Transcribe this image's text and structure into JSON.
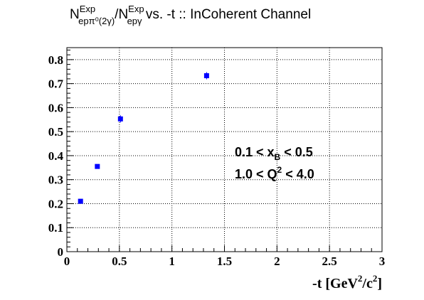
{
  "chart_data": {
    "type": "scatter",
    "title": {
      "lead": "N",
      "num_sup": "Exp",
      "num_sub": "epπ⁰(2γ)",
      "slash": "/N",
      "den_sup": "Exp",
      "den_sub": "epγ",
      "tail": " vs. -t :: InCoherent Channel"
    },
    "xlabel": {
      "pre": "-t [GeV",
      "sup1": "2",
      "mid": "/c",
      "sup2": "2",
      "post": "]"
    },
    "ylabel": "",
    "xlim": [
      0,
      3
    ],
    "ylim": [
      0,
      0.85
    ],
    "x_ticks": [
      0,
      0.5,
      1,
      1.5,
      2,
      2.5,
      3
    ],
    "x_tick_labels": [
      "0",
      "0.5",
      "1",
      "1.5",
      "2",
      "2.5",
      "3"
    ],
    "y_ticks": [
      0,
      0.1,
      0.2,
      0.3,
      0.4,
      0.5,
      0.6,
      0.7,
      0.8
    ],
    "y_tick_labels": [
      "0",
      "0.1",
      "0.2",
      "0.3",
      "0.4",
      "0.5",
      "0.6",
      "0.7",
      "0.8"
    ],
    "grid": true,
    "series": [
      {
        "color": "#0000ff",
        "marker": "square",
        "points": [
          {
            "x": 0.13,
            "y": 0.21,
            "yerr": 0.006
          },
          {
            "x": 0.29,
            "y": 0.355,
            "yerr": 0.006
          },
          {
            "x": 0.51,
            "y": 0.553,
            "yerr": 0.015
          },
          {
            "x": 1.33,
            "y": 0.733,
            "yerr": 0.015
          }
        ]
      }
    ],
    "annotations": [
      {
        "parts": [
          "0.1 < x",
          "B",
          " < 0.5"
        ]
      },
      {
        "parts": [
          "1.0 < Q",
          "2",
          " < 4.0"
        ]
      }
    ]
  }
}
